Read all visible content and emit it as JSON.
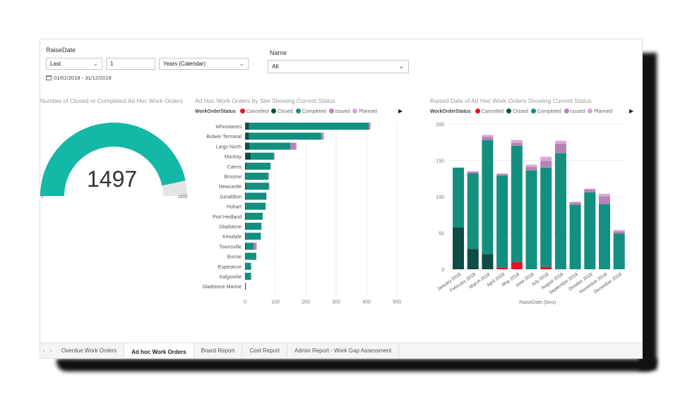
{
  "filters": {
    "raise_date_label": "RaiseDate",
    "period_select": "Last",
    "period_count": "1",
    "period_unit": "Years (Calendar)",
    "date_range": "01/01/2018 - 31/12/2018",
    "name_label": "Name",
    "name_select": "All"
  },
  "gauge": {
    "title": "Number of Closed or Completed Ad Hoc Work Orders",
    "value": "1497",
    "min_label": "0",
    "max_label": "1605",
    "fraction": 0.9327,
    "fill_color": "#14b8a6"
  },
  "legend": {
    "title": "WorkOrderStatus",
    "items": [
      {
        "label": "Cancelled",
        "color": "#e81123"
      },
      {
        "label": "Closed",
        "color": "#0d4d44"
      },
      {
        "label": "Completed",
        "color": "#138f80"
      },
      {
        "label": "Issued",
        "color": "#b882b6"
      },
      {
        "label": "Planned",
        "color": "#d9a8d6"
      }
    ]
  },
  "chart_data": [
    {
      "type": "bar",
      "orientation": "horizontal",
      "stacked": true,
      "title": "Ad Hoc Work Orders by Site Showing Current Status",
      "xlim": [
        0,
        500
      ],
      "xticks": [
        "0",
        "100",
        "200",
        "300",
        "400",
        "500"
      ],
      "categories": [
        "Whinstanes",
        "Bulwer Terminal",
        "Largs North",
        "Mackay",
        "Cairns",
        "Broome",
        "Newcastle",
        "Geraldton",
        "Hobart",
        "Port Hedland",
        "Gladstone",
        "Kewdale",
        "Townsville",
        "Burnie",
        "Esperance",
        "Kalgoorlie",
        "Gladstone Marine"
      ],
      "series": [
        {
          "name": "Cancelled",
          "values": [
            1,
            1,
            0,
            1,
            0,
            0,
            0,
            0,
            0,
            0,
            0,
            0,
            0,
            0,
            0,
            0,
            0
          ]
        },
        {
          "name": "Closed",
          "values": [
            12,
            12,
            14,
            18,
            4,
            3,
            4,
            3,
            3,
            3,
            3,
            3,
            4,
            2,
            2,
            2,
            1
          ]
        },
        {
          "name": "Completed",
          "values": [
            394,
            238,
            135,
            76,
            80,
            73,
            74,
            67,
            65,
            55,
            51,
            49,
            24,
            35,
            18,
            18,
            2
          ]
        },
        {
          "name": "Issued",
          "values": [
            5,
            6,
            18,
            2,
            0,
            3,
            2,
            1,
            0,
            0,
            0,
            0,
            10,
            0,
            0,
            0,
            0
          ]
        },
        {
          "name": "Planned",
          "values": [
            2,
            3,
            3,
            0,
            0,
            0,
            0,
            0,
            0,
            0,
            0,
            0,
            0,
            0,
            0,
            0,
            0
          ]
        }
      ]
    },
    {
      "type": "bar",
      "orientation": "vertical",
      "stacked": true,
      "title": "Raised Date of Ad Hoc Work Orders Showing Current Status",
      "xlabel": "RaiseDate (bins)",
      "ylim": [
        0,
        200
      ],
      "yticks": [
        "0",
        "50",
        "100",
        "150",
        "200"
      ],
      "categories": [
        "January 2018",
        "February 2018",
        "March 2018",
        "April 2018",
        "May 2018",
        "June 2018",
        "July 2018",
        "August 2018",
        "September 2018",
        "October 2018",
        "November 2018",
        "December 2018"
      ],
      "series": [
        {
          "name": "Cancelled",
          "values": [
            0,
            0,
            0,
            2,
            10,
            0,
            3,
            0,
            0,
            0,
            0,
            0
          ]
        },
        {
          "name": "Closed",
          "values": [
            58,
            28,
            21,
            0,
            0,
            0,
            0,
            0,
            0,
            0,
            0,
            0
          ]
        },
        {
          "name": "Completed",
          "values": [
            82,
            104,
            157,
            127,
            160,
            136,
            137,
            160,
            89,
            106,
            90,
            49
          ]
        },
        {
          "name": "Issued",
          "values": [
            0,
            2,
            4,
            2,
            4,
            5,
            9,
            13,
            3,
            4,
            10,
            3
          ]
        },
        {
          "name": "Planned",
          "values": [
            0,
            1,
            3,
            1,
            4,
            3,
            6,
            4,
            1,
            1,
            4,
            2
          ]
        }
      ]
    }
  ],
  "tabs": {
    "items": [
      "Overdue Work Orders",
      "Ad hoc Work Orders",
      "Board Report",
      "Cost Report",
      "Admin Report - Work Gap Assessment"
    ],
    "active": "Ad hoc Work Orders"
  }
}
